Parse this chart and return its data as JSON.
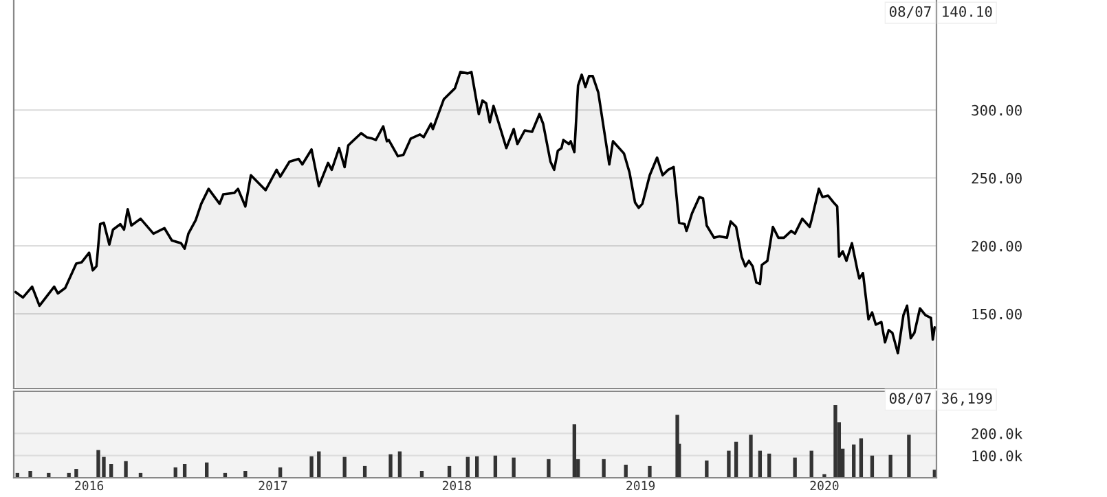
{
  "chart_data": [
    {
      "type": "area",
      "annotations": [
        "08/07",
        "140.10"
      ],
      "xlim": [
        2015.59,
        2020.61
      ],
      "ylim": [
        95,
        381
      ],
      "yticks": [
        {
          "value": 150,
          "label": "150.00"
        },
        {
          "value": 200,
          "label": "200.00"
        },
        {
          "value": 250,
          "label": "250.00"
        },
        {
          "value": 300,
          "label": "300.00"
        }
      ],
      "grid": "y",
      "tick_labels": "y",
      "series": [
        {
          "color": "#000000",
          "x": [
            2015.6,
            2015.64,
            2015.69,
            2015.73,
            2015.81,
            2015.83,
            2015.87,
            2015.93,
            2015.96,
            2016.0,
            2016.02,
            2016.04,
            2016.06,
            2016.08,
            2016.11,
            2016.13,
            2016.17,
            2016.19,
            2016.21,
            2016.23,
            2016.28,
            2016.35,
            2016.41,
            2016.45,
            2016.5,
            2016.52,
            2016.54,
            2016.58,
            2016.61,
            2016.65,
            2016.71,
            2016.73,
            2016.79,
            2016.81,
            2016.85,
            2016.88,
            2016.96,
            2017.02,
            2017.04,
            2017.09,
            2017.14,
            2017.16,
            2017.21,
            2017.25,
            2017.3,
            2017.32,
            2017.36,
            2017.39,
            2017.41,
            2017.48,
            2017.51,
            2017.54,
            2017.56,
            2017.6,
            2017.62,
            2017.63,
            2017.68,
            2017.71,
            2017.75,
            2017.8,
            2017.82,
            2017.86,
            2017.87,
            2017.93,
            2017.99,
            2018.02,
            2018.06,
            2018.08,
            2018.12,
            2018.14,
            2018.16,
            2018.18,
            2018.2,
            2018.27,
            2018.31,
            2018.33,
            2018.37,
            2018.41,
            2018.45,
            2018.47,
            2018.51,
            2018.53,
            2018.55,
            2018.57,
            2018.58,
            2018.61,
            2018.62,
            2018.64,
            2018.66,
            2018.68,
            2018.7,
            2018.72,
            2018.74,
            2018.77,
            2018.83,
            2018.85,
            2018.91,
            2018.94,
            2018.97,
            2018.99,
            2019.01,
            2019.05,
            2019.09,
            2019.12,
            2019.15,
            2019.18,
            2019.21,
            2019.24,
            2019.25,
            2019.28,
            2019.32,
            2019.34,
            2019.36,
            2019.4,
            2019.43,
            2019.47,
            2019.49,
            2019.52,
            2019.55,
            2019.57,
            2019.59,
            2019.61,
            2019.63,
            2019.65,
            2019.66,
            2019.69,
            2019.72,
            2019.75,
            2019.78,
            2019.82,
            2019.84,
            2019.88,
            2019.92,
            2019.93,
            2019.97,
            2019.99,
            2020.02,
            2020.05,
            2020.07,
            2020.08,
            2020.1,
            2020.12,
            2020.15,
            2020.18,
            2020.19,
            2020.21,
            2020.24,
            2020.26,
            2020.28,
            2020.31,
            2020.33,
            2020.35,
            2020.37,
            2020.4,
            2020.43,
            2020.45,
            2020.47,
            2020.49,
            2020.52,
            2020.55,
            2020.58,
            2020.59,
            2020.6
          ],
          "values": [
            166,
            162,
            170,
            156,
            170,
            165,
            169,
            187,
            188,
            195,
            182,
            185,
            216,
            217,
            201,
            212,
            216,
            212,
            227,
            215,
            220,
            209,
            213,
            204,
            202,
            198,
            209,
            219,
            231,
            242,
            231,
            238,
            239,
            242,
            229,
            252,
            241,
            256,
            251,
            262,
            264,
            260,
            271,
            244,
            261,
            256,
            272,
            258,
            274,
            283,
            280,
            279,
            278,
            288,
            277,
            278,
            266,
            267,
            279,
            282,
            280,
            290,
            286,
            308,
            316,
            328,
            327,
            328,
            297,
            307,
            305,
            291,
            303,
            272,
            286,
            275,
            285,
            284,
            297,
            290,
            262,
            256,
            270,
            272,
            278,
            275,
            277,
            269,
            318,
            326,
            317,
            325,
            325,
            313,
            260,
            277,
            268,
            254,
            232,
            228,
            231,
            252,
            265,
            252,
            256,
            258,
            217,
            216,
            211,
            224,
            236,
            235,
            215,
            206,
            207,
            206,
            218,
            214,
            192,
            185,
            189,
            185,
            173,
            172,
            186,
            189,
            214,
            206,
            206,
            211,
            209,
            220,
            214,
            219,
            242,
            236,
            237,
            232,
            229,
            192,
            196,
            189,
            202,
            182,
            176,
            180,
            146,
            151,
            142,
            144,
            129,
            138,
            136,
            121,
            149,
            156,
            132,
            136,
            154,
            149,
            147,
            131,
            140.1
          ]
        }
      ]
    },
    {
      "type": "bar",
      "annotations": [
        "08/07",
        "36,199"
      ],
      "xlim": [
        2015.59,
        2020.61
      ],
      "ylim": [
        0,
        390000
      ],
      "xticks": [
        2016,
        2017,
        2018,
        2019,
        2020
      ],
      "yticks": [
        {
          "value": 100000,
          "label": "100.0k"
        },
        {
          "value": 200000,
          "label": "200.0k"
        }
      ],
      "grid": "y",
      "series": [
        {
          "color": "#333333",
          "x": [
            2015.61,
            2015.68,
            2015.78,
            2015.89,
            2015.93,
            2016.05,
            2016.08,
            2016.12,
            2016.2,
            2016.28,
            2016.47,
            2016.52,
            2016.64,
            2016.74,
            2016.85,
            2017.04,
            2017.21,
            2017.25,
            2017.39,
            2017.5,
            2017.64,
            2017.69,
            2017.81,
            2017.96,
            2018.06,
            2018.11,
            2018.21,
            2018.31,
            2018.5,
            2018.64,
            2018.66,
            2018.8,
            2018.92,
            2019.05,
            2019.2,
            2019.21,
            2019.36,
            2019.48,
            2019.52,
            2019.6,
            2019.65,
            2019.7,
            2019.84,
            2019.93,
            2020.0,
            2020.06,
            2020.08,
            2020.1,
            2020.16,
            2020.2,
            2020.26,
            2020.36,
            2020.46,
            2020.6
          ],
          "values": [
            22000,
            31000,
            22000,
            22000,
            40000,
            125000,
            94000,
            62000,
            75000,
            22000,
            47000,
            62000,
            69000,
            22000,
            31000,
            47000,
            97000,
            119000,
            94000,
            53000,
            106000,
            119000,
            31000,
            53000,
            94000,
            97000,
            100000,
            91000,
            84000,
            241000,
            84000,
            84000,
            59000,
            53000,
            284000,
            153000,
            78000,
            122000,
            162000,
            194000,
            122000,
            109000,
            91000,
            122000,
            16000,
            328000,
            250000,
            131000,
            150000,
            178000,
            100000,
            103000,
            194000,
            36199
          ]
        }
      ]
    }
  ]
}
